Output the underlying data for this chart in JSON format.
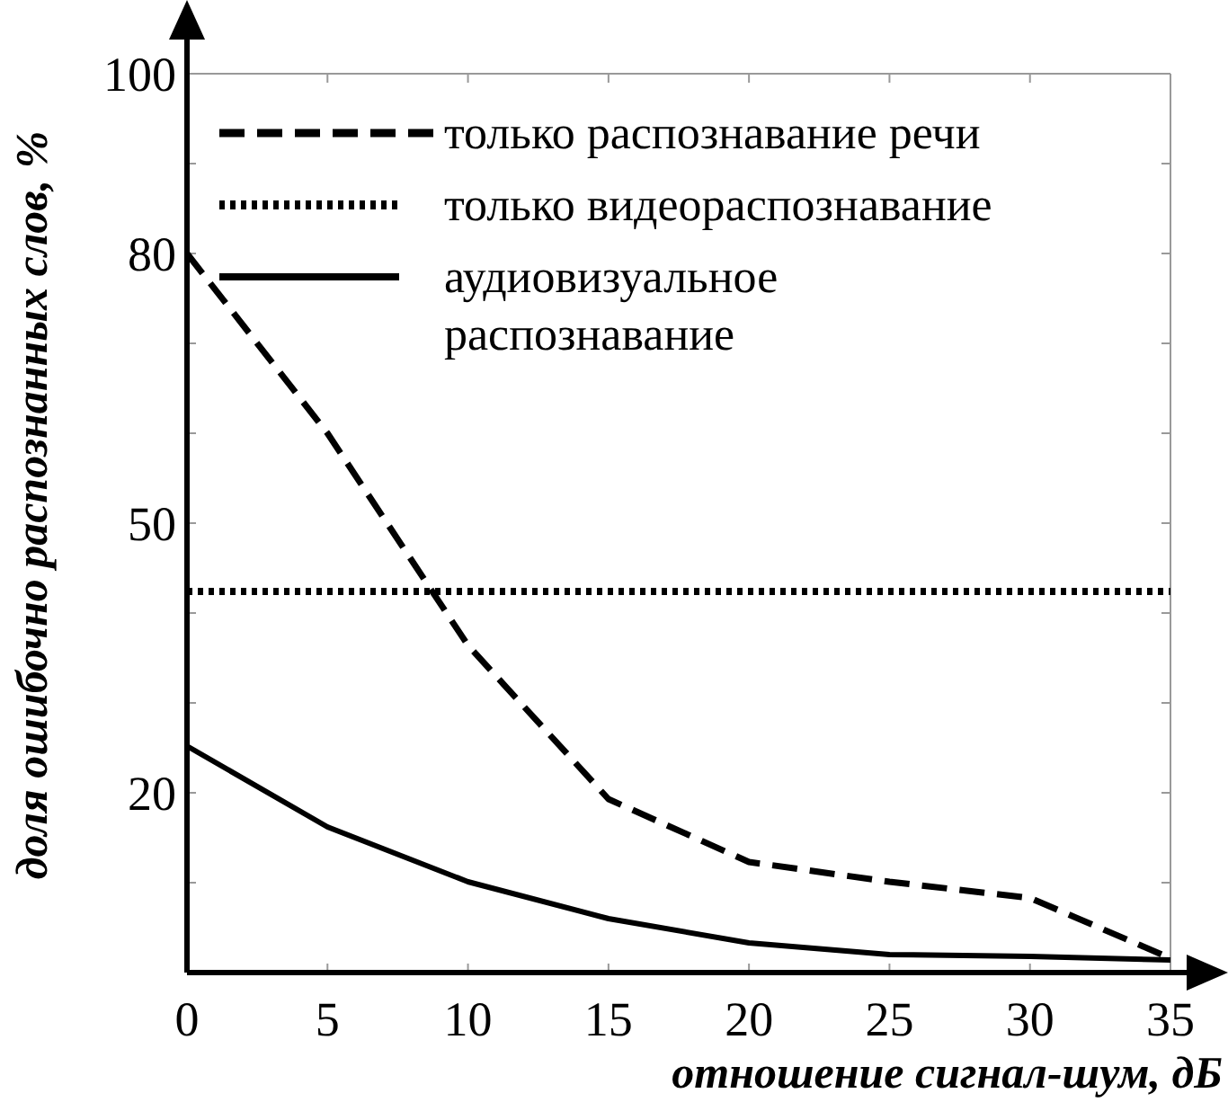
{
  "chart_data": {
    "type": "line",
    "xlabel": "отношение сигнал-шум, дБ",
    "ylabel": "доля ошибочно распознанных слов, %",
    "x": [
      0,
      5,
      10,
      15,
      20,
      25,
      30,
      35
    ],
    "series": [
      {
        "name": "только распознавание речи",
        "color": "#000000",
        "line_style": "dashed",
        "values": [
          80,
          60,
          36.4,
          19.3,
          12.3,
          10.1,
          8.3,
          1.6
        ]
      },
      {
        "name": "только видеораспознавание",
        "color": "#000000",
        "line_style": "dotted",
        "values": [
          42.4,
          42.4,
          42.4,
          42.4,
          42.4,
          42.4,
          42.4,
          42.4
        ]
      },
      {
        "name": "аудиовизуальное распознавание",
        "color": "#000000",
        "line_style": "solid",
        "values": [
          25.2,
          16.2,
          10.1,
          6.0,
          3.3,
          2.0,
          1.8,
          1.4
        ]
      }
    ],
    "xlim": [
      0,
      35
    ],
    "xticks": [
      0,
      5,
      10,
      15,
      20,
      25,
      30,
      35
    ],
    "ylim": [
      0,
      100
    ],
    "yticks": [
      {
        "value": 10,
        "label": null
      },
      20,
      {
        "value": 30,
        "label": null
      },
      {
        "value": 40,
        "label": null
      },
      50,
      {
        "value": 60,
        "label": null
      },
      {
        "value": 70,
        "label": null
      },
      80,
      {
        "value": 90,
        "label": null
      },
      100
    ],
    "grid": false,
    "legend": "top left"
  }
}
